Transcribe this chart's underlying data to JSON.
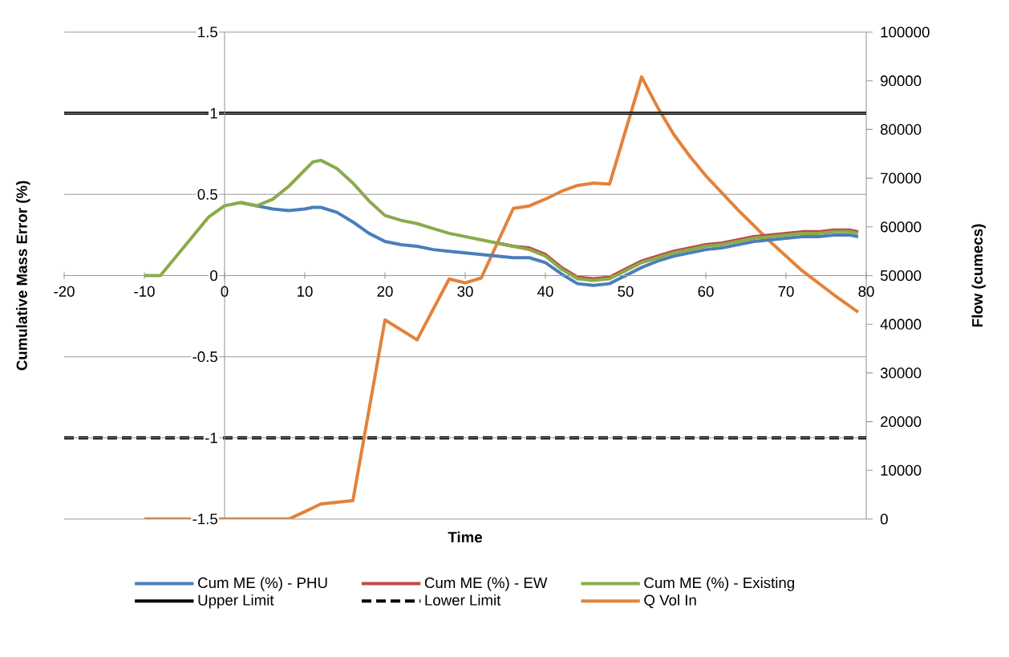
{
  "chart_data": {
    "type": "line",
    "xlabel": "Time",
    "ylabel": "Cumulative Mass Error (%)",
    "y2label": "Flow (cumecs)",
    "xlim": [
      -20,
      80
    ],
    "xticks": [
      -20,
      -10,
      0,
      10,
      20,
      30,
      40,
      50,
      60,
      70,
      80
    ],
    "ylim": [
      -1.5,
      1.5
    ],
    "yticks": [
      -1.5,
      -1,
      -0.5,
      0,
      0.5,
      1,
      1.5
    ],
    "y2lim": [
      0,
      100000
    ],
    "y2ticks": [
      0,
      10000,
      20000,
      30000,
      40000,
      50000,
      60000,
      70000,
      80000,
      90000,
      100000
    ],
    "grid": "y",
    "legend": "bottom",
    "marker": "none",
    "line_style": "solid",
    "x": [
      -10,
      -8,
      -6,
      -4,
      -2,
      0,
      2,
      4,
      6,
      8,
      10,
      11,
      12,
      14,
      16,
      18,
      20,
      22,
      24,
      26,
      28,
      30,
      32,
      34,
      36,
      38,
      40,
      42,
      44,
      46,
      48,
      50,
      52,
      54,
      56,
      58,
      60,
      62,
      64,
      66,
      68,
      70,
      72,
      74,
      76,
      78,
      79
    ],
    "series": [
      {
        "name": "Cum ME (%) - PHU",
        "color": "#4a7ebb",
        "values": [
          null,
          null,
          null,
          null,
          null,
          null,
          0.45,
          0.43,
          0.41,
          0.4,
          0.41,
          0.42,
          0.42,
          0.39,
          0.33,
          0.26,
          0.21,
          0.19,
          0.18,
          0.16,
          0.15,
          0.14,
          0.13,
          0.12,
          0.11,
          0.11,
          0.08,
          0.01,
          -0.05,
          -0.06,
          -0.05,
          0,
          0.05,
          0.09,
          0.12,
          0.14,
          0.16,
          0.17,
          0.19,
          0.21,
          0.22,
          0.23,
          0.24,
          0.24,
          0.25,
          0.25,
          0.24
        ]
      },
      {
        "name": "Cum ME (%) - EW",
        "color": "#be4b48",
        "values": [
          null,
          null,
          null,
          null,
          null,
          null,
          null,
          null,
          null,
          null,
          null,
          null,
          null,
          null,
          null,
          null,
          null,
          null,
          null,
          null,
          null,
          null,
          null,
          0.2,
          0.18,
          0.17,
          0.13,
          0.05,
          -0.01,
          -0.02,
          -0.01,
          0.04,
          0.09,
          0.12,
          0.15,
          0.17,
          0.19,
          0.2,
          0.22,
          0.24,
          0.25,
          0.26,
          0.27,
          0.27,
          0.28,
          0.28,
          0.27
        ]
      },
      {
        "name": "Cum ME (%) - Existing",
        "color": "#8aab4a",
        "values": [
          0,
          0,
          0.12,
          0.24,
          0.36,
          0.43,
          0.45,
          0.43,
          0.47,
          0.55,
          0.65,
          0.7,
          0.71,
          0.66,
          0.57,
          0.46,
          0.37,
          0.34,
          0.32,
          0.29,
          0.26,
          0.24,
          0.22,
          0.2,
          0.18,
          0.16,
          0.12,
          0.04,
          -0.02,
          -0.03,
          -0.02,
          0.03,
          0.08,
          0.11,
          0.14,
          0.16,
          0.18,
          0.19,
          0.21,
          0.23,
          0.24,
          0.25,
          0.26,
          0.26,
          0.27,
          0.27,
          0.26
        ]
      },
      {
        "name": "Q Vol In",
        "color": "#e3823a",
        "axis": "y2",
        "x": [
          -10,
          8,
          10,
          12,
          16,
          20,
          24,
          28,
          30,
          32,
          36,
          38,
          40,
          42,
          44,
          46,
          48,
          52,
          54,
          56,
          58,
          60,
          64,
          68,
          72,
          76,
          79
        ],
        "values": [
          0,
          0,
          1500,
          3100,
          3800,
          40900,
          36800,
          49300,
          48500,
          49500,
          63800,
          64300,
          65700,
          67300,
          68500,
          69000,
          68800,
          90800,
          84500,
          79000,
          74500,
          70500,
          63500,
          57000,
          51000,
          46000,
          42500
        ]
      }
    ],
    "ref_lines": [
      {
        "axis": "y",
        "value": 1,
        "label": "Upper Limit",
        "color": "#000000",
        "line_style": "solid"
      },
      {
        "axis": "y",
        "value": -1,
        "label": "Lower Limit",
        "color": "#000000",
        "line_style": "dashed"
      }
    ]
  }
}
